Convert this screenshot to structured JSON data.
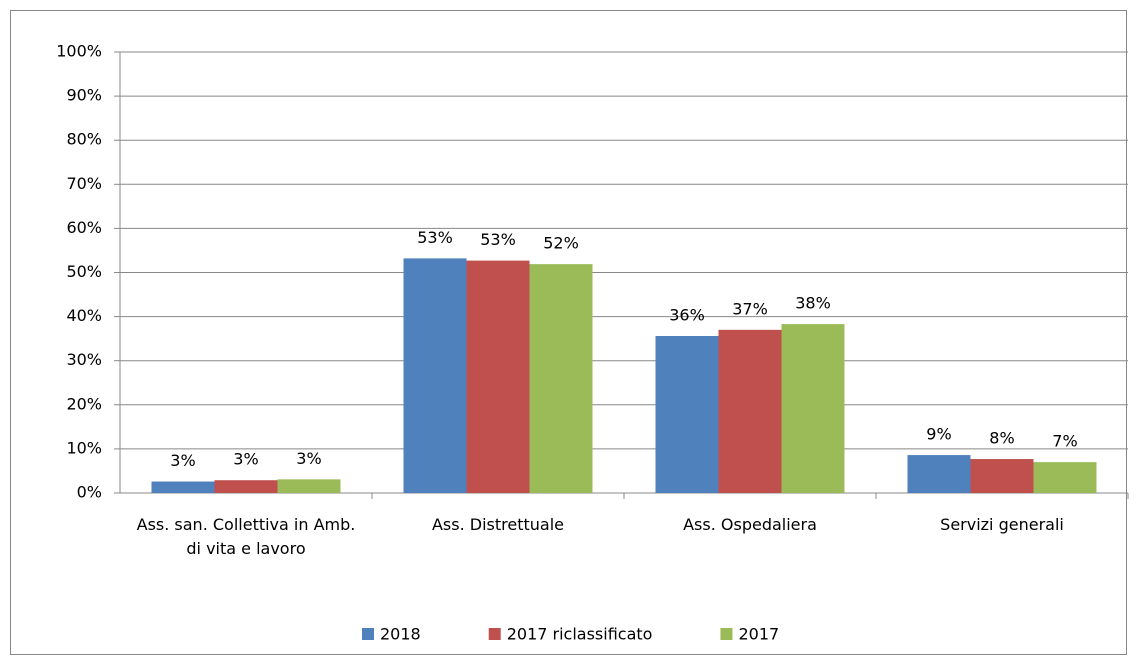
{
  "chart_data": {
    "type": "bar",
    "categories": [
      "Ass. san. Collettiva in Amb. di vita e lavoro",
      "Ass. Distrettuale",
      "Ass. Ospedaliera",
      "Servizi generali"
    ],
    "series": [
      {
        "name": "2018",
        "color": "#4f81bd",
        "values": [
          2.6,
          53.2,
          35.6,
          8.6
        ],
        "value_labels": [
          "3%",
          "53%",
          "36%",
          "9%"
        ]
      },
      {
        "name": "2017 riclassificato",
        "color": "#c0504d",
        "values": [
          2.9,
          52.7,
          37.0,
          7.7
        ],
        "value_labels": [
          "3%",
          "53%",
          "37%",
          "8%"
        ]
      },
      {
        "name": "2017",
        "color": "#9bbb59",
        "values": [
          3.1,
          51.9,
          38.3,
          7.0
        ],
        "value_labels": [
          "3%",
          "52%",
          "38%",
          "7%"
        ]
      }
    ],
    "ylim": [
      0,
      100
    ],
    "yticks": [
      {
        "value": 0,
        "label": "0%"
      },
      {
        "value": 10,
        "label": "10%"
      },
      {
        "value": 20,
        "label": "20%"
      },
      {
        "value": 30,
        "label": "30%"
      },
      {
        "value": 40,
        "label": "40%"
      },
      {
        "value": 50,
        "label": "50%"
      },
      {
        "value": 60,
        "label": "60%"
      },
      {
        "value": 70,
        "label": "70%"
      },
      {
        "value": 80,
        "label": "80%"
      },
      {
        "value": 90,
        "label": "90%"
      },
      {
        "value": 100,
        "label": "100%"
      }
    ],
    "grid": true,
    "legend": "bottom"
  }
}
